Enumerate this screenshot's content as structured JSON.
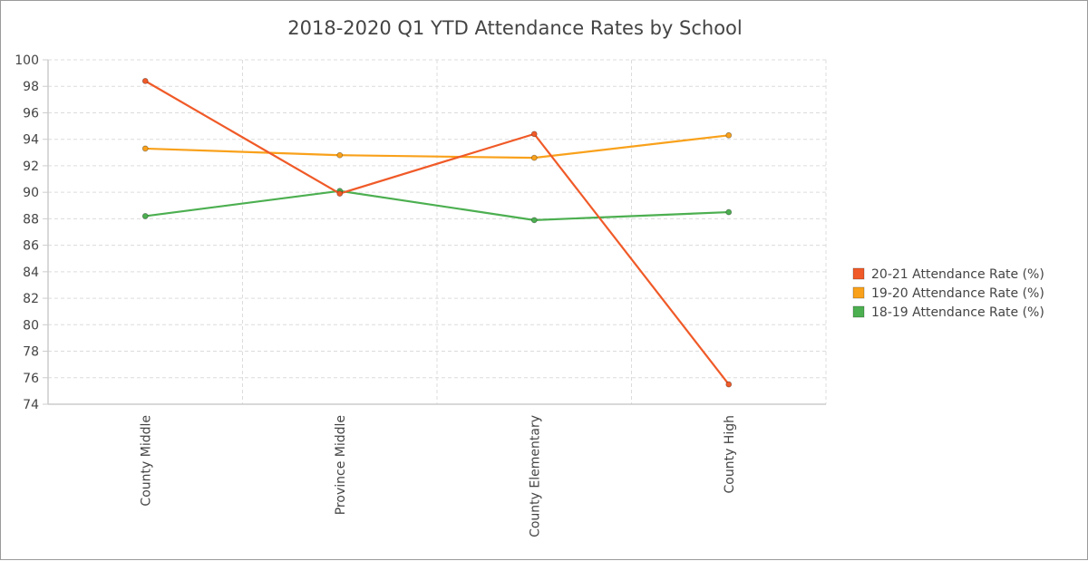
{
  "chart_data": {
    "type": "line",
    "title": "2018-2020 Q1 YTD Attendance Rates by School",
    "xlabel": "",
    "ylabel": "",
    "categories": [
      "County Middle",
      "Province Middle",
      "County Elementary",
      "County High"
    ],
    "ylim": [
      74,
      100
    ],
    "yticks": [
      74,
      76,
      78,
      80,
      82,
      84,
      86,
      88,
      90,
      92,
      94,
      96,
      98,
      100
    ],
    "grid": true,
    "legend_position": "right",
    "series": [
      {
        "name": "20-21 Attendance Rate (%)",
        "color": "#f05a28",
        "values": [
          98.4,
          89.9,
          94.4,
          75.5
        ]
      },
      {
        "name": "19-20 Attendance Rate (%)",
        "color": "#f9a11b",
        "values": [
          93.3,
          92.8,
          92.6,
          94.3
        ]
      },
      {
        "name": "18-19 Attendance Rate (%)",
        "color": "#4caf50",
        "values": [
          88.2,
          90.1,
          87.9,
          88.5
        ]
      }
    ]
  }
}
